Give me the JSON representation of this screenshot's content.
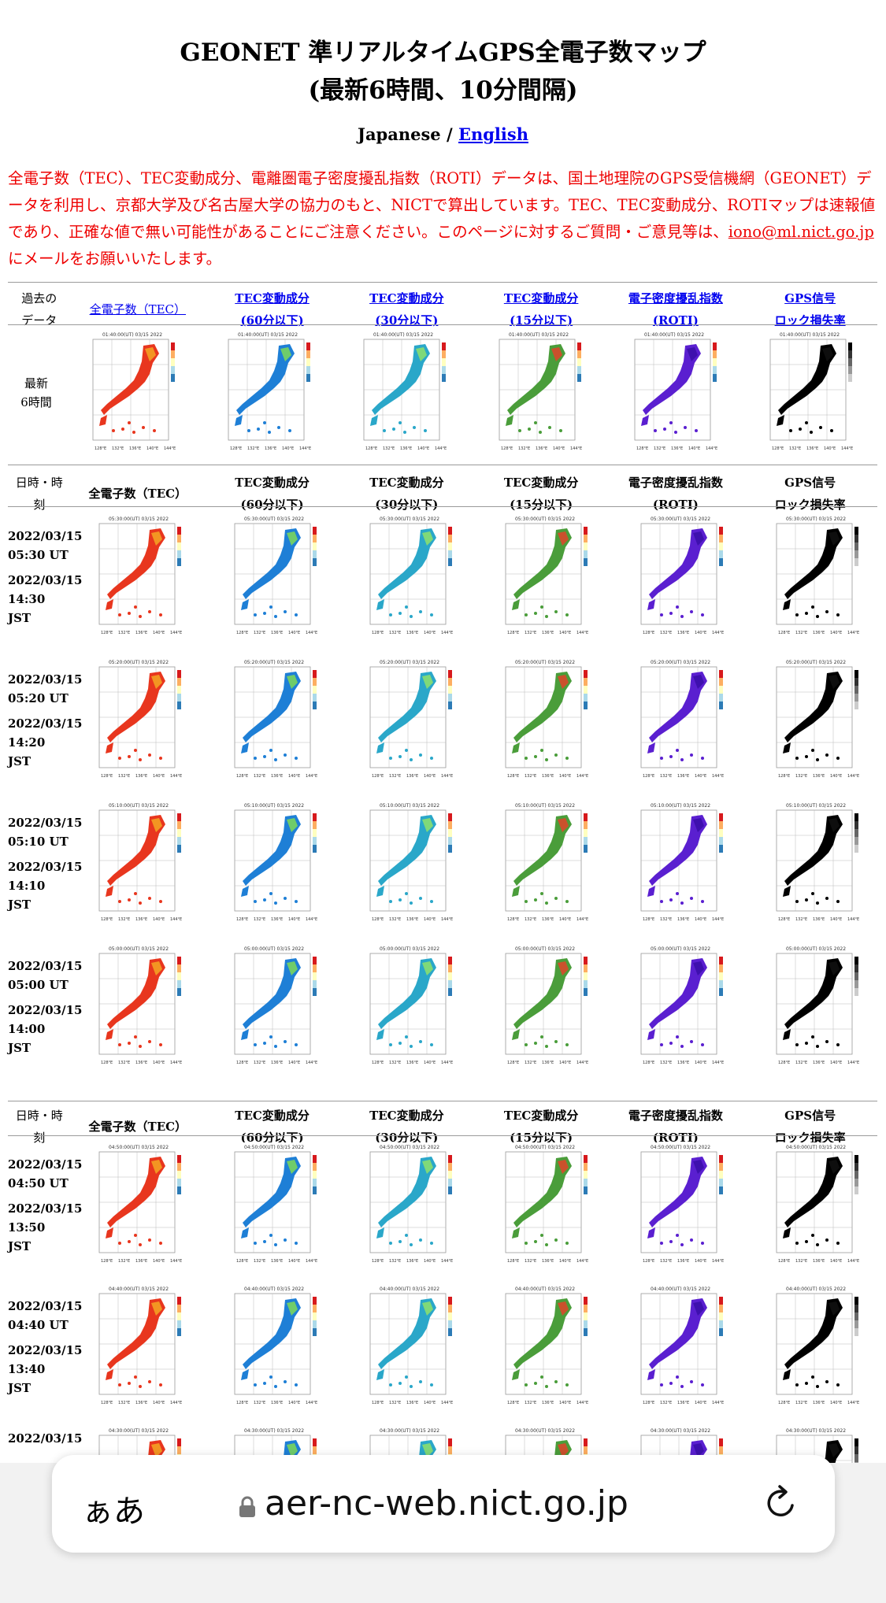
{
  "title_line1": "GEONET 準リアルタイムGPS全電子数マップ",
  "title_line2": "(最新6時間、10分間隔)",
  "lang": {
    "japanese": "Japanese",
    "sep": " / ",
    "english": "English"
  },
  "notice": {
    "text": "全電子数（TEC）、TEC変動成分、電離圏電子密度擾乱指数（ROTI）データは、国土地理院のGPS受信機網（GEONET）データを利用し、京都大学及び名古屋大学の協力のもと、NICTで算出しています。TEC、TEC変動成分、ROTIマップは速報値であり、正確な値で無い可能性があることにご注意ください。このページに対するご質問・ご意見等は、",
    "email": "iono@ml.nict.go.jp",
    "tail": " にメールをお願いいたします。"
  },
  "top_header": {
    "first": [
      "過去の",
      "データ"
    ],
    "cols": [
      [
        "全電子数（TEC）"
      ],
      [
        "TEC変動成分",
        "(60分以下)"
      ],
      [
        "TEC変動成分",
        "(30分以下)"
      ],
      [
        "TEC変動成分",
        "(15分以下)"
      ],
      [
        "電子密度擾乱指数",
        "(ROTI)"
      ],
      [
        "GPS信号",
        "ロック損失率"
      ]
    ]
  },
  "latest_label": [
    "最新",
    "6時間"
  ],
  "section_header": {
    "first": [
      "日時・時",
      "刻"
    ],
    "cols": [
      [
        "全電子数（TEC）"
      ],
      [
        "TEC変動成分",
        "(60分以下)"
      ],
      [
        "TEC変動成分",
        "(30分以下)"
      ],
      [
        "TEC変動成分",
        "(15分以下)"
      ],
      [
        "電子密度擾乱指数",
        "(ROTI)"
      ],
      [
        "GPS信号",
        "ロック損失率"
      ]
    ]
  },
  "rows_a": [
    {
      "ut": [
        "2022/03/15",
        "05:30 UT"
      ],
      "jst": [
        "2022/03/15",
        "14:30",
        "JST"
      ],
      "map_time": "05:30:00(UT) 03/15 2022"
    },
    {
      "ut": [
        "2022/03/15",
        "05:20 UT"
      ],
      "jst": [
        "2022/03/15",
        "14:20",
        "JST"
      ],
      "map_time": "05:20:00(UT) 03/15 2022"
    },
    {
      "ut": [
        "2022/03/15",
        "05:10 UT"
      ],
      "jst": [
        "2022/03/15",
        "14:10",
        "JST"
      ],
      "map_time": "05:10:00(UT) 03/15 2022"
    },
    {
      "ut": [
        "2022/03/15",
        "05:00 UT"
      ],
      "jst": [
        "2022/03/15",
        "14:00",
        "JST"
      ],
      "map_time": "05:00:00(UT) 03/15 2022"
    }
  ],
  "rows_b": [
    {
      "ut": [
        "2022/03/15",
        "04:50 UT"
      ],
      "jst": [
        "2022/03/15",
        "13:50",
        "JST"
      ],
      "map_time": "04:50:00(UT) 03/15 2022"
    },
    {
      "ut": [
        "2022/03/15",
        "04:40 UT"
      ],
      "jst": [
        "2022/03/15",
        "13:40",
        "JST"
      ],
      "map_time": "04:40:00(UT) 03/15 2022"
    },
    {
      "ut": [
        "2022/03/15",
        "",
        ""
      ],
      "jst": [
        "",
        "",
        ""
      ],
      "map_time": "04:30:00(UT) 03/15 2022"
    }
  ],
  "latest_map_time": "01:40:00(UT) 03/15 2022",
  "map_styles": [
    {
      "name": "tec",
      "fill": "#e8361e",
      "accent": "#f5a623"
    },
    {
      "name": "dtec60",
      "fill": "#1e7fd6",
      "accent": "#7ed957"
    },
    {
      "name": "dtec30",
      "fill": "#2aa7c9",
      "accent": "#8ee26b"
    },
    {
      "name": "dtec15",
      "fill": "#4a9d3a",
      "accent": "#e0442a"
    },
    {
      "name": "roti",
      "fill": "#5a1fd0",
      "accent": "#3a0ea8"
    },
    {
      "name": "lol",
      "fill": "#000000",
      "accent": "#111111"
    }
  ],
  "browser": {
    "aa": "ぁあ",
    "url": "aer-nc-web.nict.go.jp"
  }
}
